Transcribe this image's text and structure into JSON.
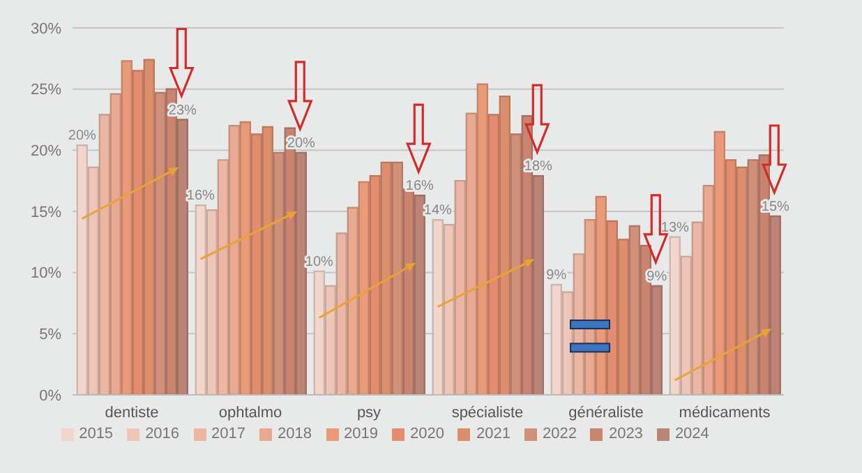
{
  "chart_data": {
    "type": "bar",
    "categories": [
      "dentiste",
      "ophtalmo",
      "psy",
      "spécialiste",
      "généraliste",
      "médicaments"
    ],
    "series": [
      {
        "name": "2015",
        "color": "#f2d6cc",
        "values": [
          20.4,
          15.5,
          10.1,
          14.3,
          9.0,
          12.9
        ],
        "value_labels": [
          "20%",
          "16%",
          "10%",
          "14%",
          "9%",
          "13%"
        ]
      },
      {
        "name": "2016",
        "color": "#eec6b8",
        "values": [
          18.6,
          15.1,
          8.9,
          13.9,
          8.4,
          11.3
        ]
      },
      {
        "name": "2017",
        "color": "#ebb7a4",
        "values": [
          22.9,
          19.2,
          13.2,
          17.5,
          11.5,
          14.1
        ]
      },
      {
        "name": "2018",
        "color": "#e9a890",
        "values": [
          24.6,
          22.0,
          15.3,
          23.0,
          14.3,
          17.1
        ]
      },
      {
        "name": "2019",
        "color": "#e99a78",
        "values": [
          27.3,
          22.3,
          17.4,
          25.4,
          16.2,
          21.5
        ]
      },
      {
        "name": "2020",
        "color": "#e28c70",
        "values": [
          26.5,
          21.3,
          17.9,
          22.9,
          14.2,
          19.2
        ]
      },
      {
        "name": "2021",
        "color": "#dc8f6c",
        "values": [
          27.4,
          21.9,
          19.0,
          24.4,
          12.7,
          18.6
        ]
      },
      {
        "name": "2022",
        "color": "#d1907a",
        "values": [
          24.7,
          19.8,
          19.0,
          21.3,
          13.8,
          19.2
        ]
      },
      {
        "name": "2023",
        "color": "#c98470",
        "values": [
          25.0,
          21.8,
          16.8,
          22.8,
          12.2,
          19.6
        ]
      },
      {
        "name": "2024",
        "color": "#bb8476",
        "values": [
          22.5,
          19.8,
          16.3,
          17.9,
          8.9,
          14.6
        ],
        "value_labels": [
          "23%",
          "20%",
          "16%",
          "18%",
          "9%",
          "15%"
        ]
      }
    ],
    "ylim": [
      0,
      30
    ],
    "yticks": [
      {
        "value": 0,
        "label": "0%"
      },
      {
        "value": 5,
        "label": "5%"
      },
      {
        "value": 10,
        "label": "10%"
      },
      {
        "value": 15,
        "label": "15%"
      },
      {
        "value": 20,
        "label": "20%"
      },
      {
        "value": 25,
        "label": "25%"
      },
      {
        "value": 30,
        "label": "30%"
      }
    ],
    "grid": "y",
    "legend": "bottom"
  }
}
